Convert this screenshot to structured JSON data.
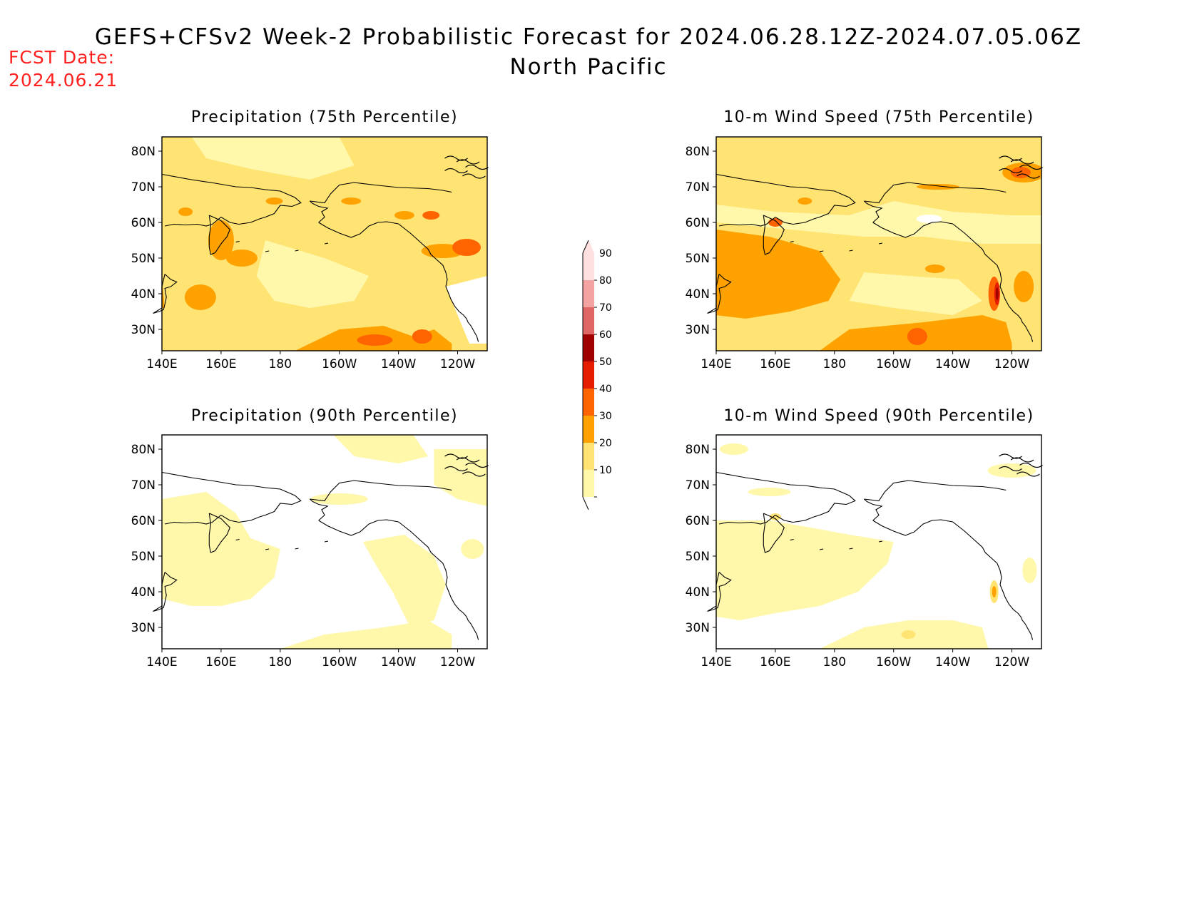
{
  "header": {
    "title": "GEFS+CFSv2 Week-2 Probabilistic Forecast for 2024.06.28.12Z-2024.07.05.06Z",
    "subtitle": "North Pacific",
    "fcst_label": "FCST Date:",
    "fcst_date": "2024.06.21"
  },
  "axes": {
    "lon_labels": [
      "140E",
      "160E",
      "180",
      "160W",
      "140W",
      "120W"
    ],
    "lat_labels": [
      "80N",
      "70N",
      "60N",
      "50N",
      "40N",
      "30N"
    ]
  },
  "panels": [
    {
      "id": "precip75",
      "title": "Precipitation (75th Percentile)"
    },
    {
      "id": "wind75",
      "title": "10-m Wind Speed (75th Percentile)"
    },
    {
      "id": "precip90",
      "title": "Precipitation (90th Percentile)"
    },
    {
      "id": "wind90",
      "title": "10-m Wind Speed (90th Percentile)"
    }
  ],
  "colorbar": {
    "levels": [
      "90",
      "80",
      "70",
      "60",
      "50",
      "40",
      "30",
      "20",
      "10"
    ],
    "colors": {
      "c10": "#fff7aa",
      "c20": "#ffe373",
      "c30": "#ffa200",
      "c40": "#ff6400",
      "c50": "#e61c00",
      "c60": "#a00000",
      "c70": "#e06565",
      "c80": "#f4a3a3",
      "c90": "#ffe0e0"
    }
  }
}
